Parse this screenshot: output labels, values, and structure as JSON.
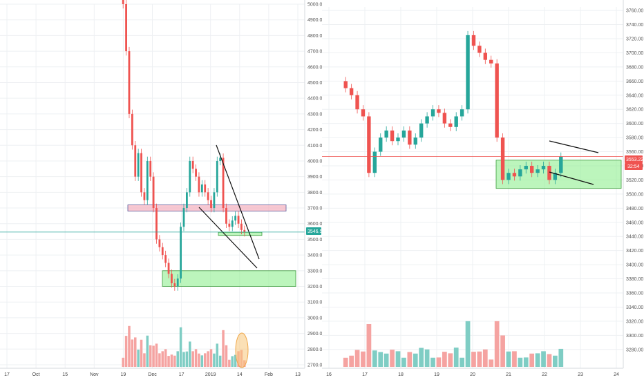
{
  "colors": {
    "up": "#26a69a",
    "down": "#ef5350",
    "up_volume": "#7fcdc4",
    "down_volume": "#f5a3a1",
    "support_zone": "#90ee90",
    "resistance_zone": "#f4a4b4",
    "price_line_green": "#26a69a",
    "price_line_red": "#ef5350"
  },
  "chart_data": [
    {
      "type": "candlestick",
      "panel": "left",
      "title": "",
      "timeframe_axis": [
        "17",
        "Oct",
        "15",
        "Nov",
        "19",
        "Dec",
        "17",
        "2019",
        "14",
        "Feb",
        "13"
      ],
      "y_ticks": [
        "5000.0",
        "4900.0",
        "4800.0",
        "4700.0",
        "4600.0",
        "4500.0",
        "4400.0",
        "4300.0",
        "4200.0",
        "4100.0",
        "4000.0",
        "3900.0",
        "3800.0",
        "3700.0",
        "3600.0",
        "3500.0",
        "3400.0",
        "3300.0",
        "3200.0",
        "3100.0",
        "3000.0",
        "2900.0",
        "2800.0",
        "2700.0"
      ],
      "ylim": [
        2700,
        5000
      ],
      "last_price": "3546.5",
      "zones": [
        {
          "kind": "resistance",
          "y_range": [
            3680,
            3720
          ],
          "x_range": [
            "19 Nov",
            "Feb"
          ]
        },
        {
          "kind": "support",
          "y_range": [
            3525,
            3545
          ],
          "x_range": [
            "14 Jan",
            "Feb"
          ]
        },
        {
          "kind": "support",
          "y_range": [
            3200,
            3300
          ],
          "x_range": [
            "Dec",
            "13 Feb"
          ]
        }
      ],
      "closes": [
        5000,
        4700,
        4300,
        4100,
        3900,
        4050,
        3800,
        3750,
        4000,
        3900,
        3700,
        3500,
        3450,
        3400,
        3350,
        3280,
        3220,
        3200,
        3250,
        3580,
        3700,
        3800,
        4000,
        3950,
        3900,
        3800,
        3850,
        3800,
        3750,
        3700,
        3800,
        4000,
        4020,
        3700,
        3600,
        3580,
        3620,
        3650,
        3600,
        3560,
        3546
      ]
    },
    {
      "type": "candlestick",
      "panel": "right",
      "title": "",
      "timeframe_axis": [
        "16",
        "17",
        "18",
        "19",
        "20",
        "21",
        "22",
        "23",
        "24"
      ],
      "y_ticks": [
        "3760.00",
        "3740.00",
        "3720.00",
        "3700.00",
        "3680.00",
        "3660.00",
        "3640.00",
        "3620.00",
        "3600.00",
        "3580.00",
        "3560.00",
        "3540.00",
        "3520.00",
        "3500.00",
        "3480.00",
        "3460.00",
        "3440.00",
        "3420.00",
        "3400.00",
        "3380.00",
        "3360.00",
        "3340.00",
        "3320.00",
        "3300.00",
        "3280.00"
      ],
      "ylim": [
        3270,
        3765
      ],
      "last_price": "3553.22",
      "countdown": "32:54",
      "zones": [
        {
          "kind": "support",
          "y_range": [
            3508,
            3548
          ],
          "x_range": [
            "20.5",
            "23.6"
          ]
        }
      ],
      "closes": [
        3650,
        3640,
        3620,
        3610,
        3530,
        3560,
        3580,
        3590,
        3575,
        3580,
        3590,
        3570,
        3580,
        3600,
        3610,
        3620,
        3615,
        3600,
        3595,
        3610,
        3620,
        3725,
        3710,
        3700,
        3690,
        3685,
        3580,
        3520,
        3530,
        3525,
        3535,
        3540,
        3530,
        3535,
        3540,
        3520,
        3530,
        3553
      ]
    }
  ]
}
